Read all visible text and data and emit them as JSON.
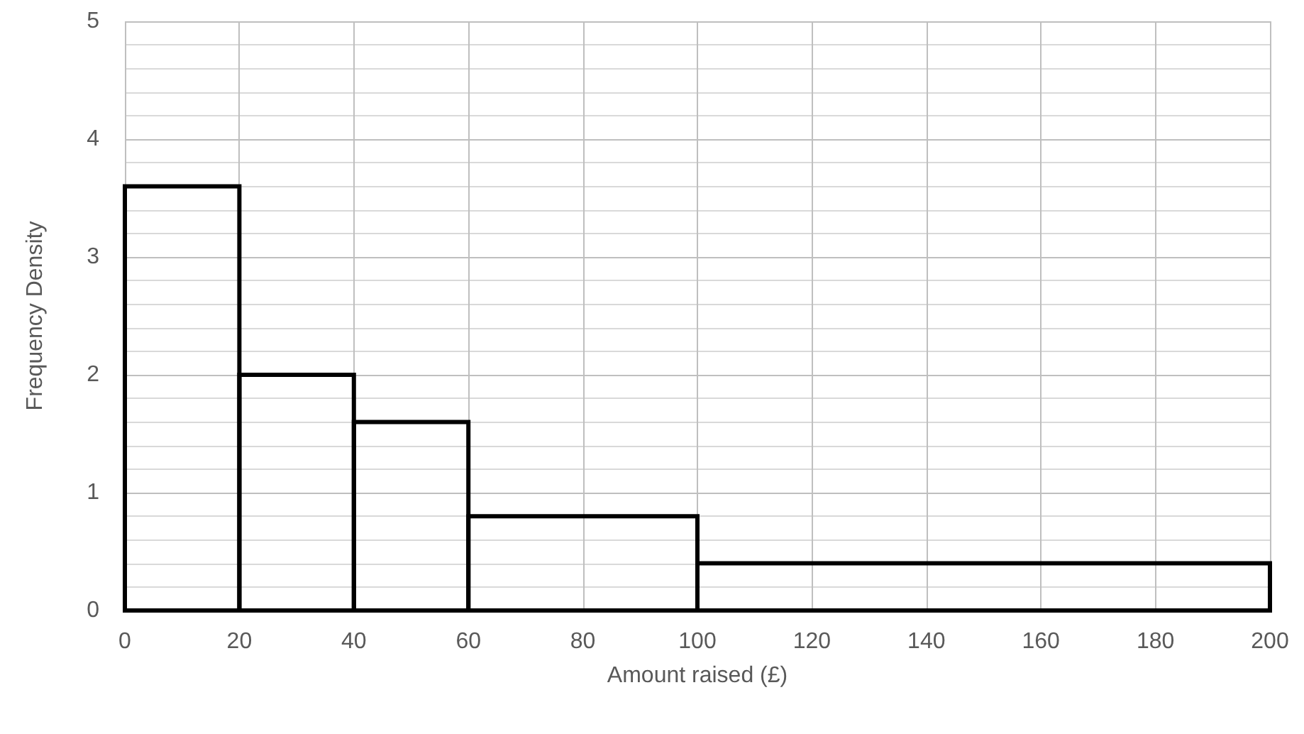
{
  "chart_data": {
    "type": "histogram",
    "xlabel": "Amount raised (£)",
    "ylabel": "Frequency Density",
    "bins": [
      0,
      20,
      40,
      60,
      100,
      200
    ],
    "values": [
      3.6,
      2,
      1.6,
      0.8,
      0.4
    ],
    "color": "#000000",
    "xlim": [
      0,
      200
    ],
    "xticks": [
      0,
      20,
      40,
      60,
      80,
      100,
      120,
      140,
      160,
      180,
      200
    ],
    "ylim": [
      0,
      5
    ],
    "yticks": [
      0,
      1,
      2,
      3,
      4,
      5
    ],
    "grid": true
  }
}
